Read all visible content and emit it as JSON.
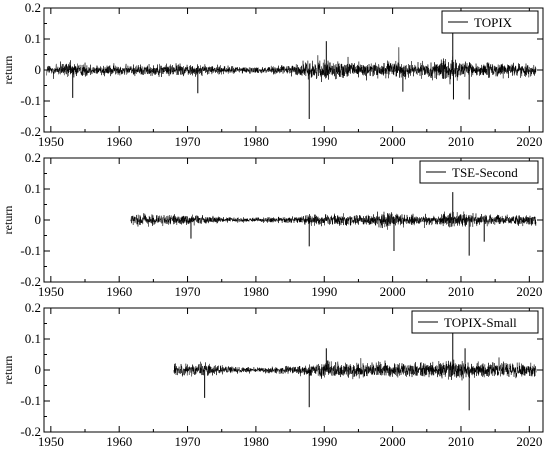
{
  "chart_data": [
    {
      "type": "line",
      "ylabel": "return",
      "xlim": [
        1949,
        2022
      ],
      "ylim": [
        -0.2,
        0.2
      ],
      "xticks": [
        "1950",
        "1960",
        "1970",
        "1980",
        "1990",
        "2000",
        "2010",
        "2020"
      ],
      "yticks": [
        "0.2",
        "0.1",
        "0",
        "-0.1",
        "-0.2"
      ],
      "legend_position": "top-right",
      "series": [
        {
          "name": "TOPIX",
          "start_year": 1949.4,
          "end_year": 2021.0,
          "color": "#000000",
          "volatility": [
            [
              1949.4,
              0.012
            ],
            [
              1953,
              0.016
            ],
            [
              1956,
              0.011
            ],
            [
              1960,
              0.01
            ],
            [
              1965,
              0.011
            ],
            [
              1970,
              0.012
            ],
            [
              1975,
              0.008
            ],
            [
              1980,
              0.006
            ],
            [
              1985,
              0.009
            ],
            [
              1987.5,
              0.016
            ],
            [
              1990,
              0.018
            ],
            [
              1993,
              0.014
            ],
            [
              1998,
              0.015
            ],
            [
              2001,
              0.016
            ],
            [
              2005,
              0.012
            ],
            [
              2008.5,
              0.024
            ],
            [
              2010,
              0.015
            ],
            [
              2013,
              0.014
            ],
            [
              2016,
              0.013
            ],
            [
              2020,
              0.012
            ],
            [
              2021.0,
              0.011
            ]
          ],
          "spikes": [
            [
              1953.2,
              -0.09
            ],
            [
              1987.8,
              -0.158
            ],
            [
              1990.3,
              0.093
            ],
            [
              2008.8,
              0.128
            ],
            [
              2008.9,
              -0.095
            ],
            [
              2011.2,
              -0.095
            ],
            [
              2001.5,
              -0.07
            ],
            [
              1971.5,
              -0.075
            ]
          ]
        },
        {
          "name": "TSE-Second",
          "start_year": 1961.7,
          "end_year": 2021.0,
          "color": "#000000",
          "volatility": [
            [
              1961.7,
              0.012
            ],
            [
              1964,
              0.01
            ],
            [
              1970,
              0.009
            ],
            [
              1975,
              0.006
            ],
            [
              1980,
              0.004
            ],
            [
              1985,
              0.006
            ],
            [
              1988,
              0.01
            ],
            [
              1990,
              0.012
            ],
            [
              1995,
              0.009
            ],
            [
              2000,
              0.016
            ],
            [
              2002,
              0.01
            ],
            [
              2006,
              0.009
            ],
            [
              2008.5,
              0.018
            ],
            [
              2011,
              0.012
            ],
            [
              2015,
              0.01
            ],
            [
              2021.0,
              0.009
            ]
          ],
          "spikes": [
            [
              1987.8,
              -0.085
            ],
            [
              2000.2,
              -0.1
            ],
            [
              2008.8,
              0.09
            ],
            [
              2011.2,
              -0.115
            ],
            [
              2013.4,
              -0.07
            ],
            [
              1970.5,
              -0.06
            ]
          ]
        },
        {
          "name": "TOPIX-Small",
          "start_year": 1968.0,
          "end_year": 2021.0,
          "color": "#000000",
          "volatility": [
            [
              1968.0,
              0.012
            ],
            [
              1972,
              0.013
            ],
            [
              1975,
              0.008
            ],
            [
              1980,
              0.005
            ],
            [
              1985,
              0.007
            ],
            [
              1988,
              0.011
            ],
            [
              1990,
              0.016
            ],
            [
              1995,
              0.013
            ],
            [
              2000,
              0.015
            ],
            [
              2005,
              0.013
            ],
            [
              2008.5,
              0.02
            ],
            [
              2011,
              0.015
            ],
            [
              2015,
              0.014
            ],
            [
              2021.0,
              0.012
            ]
          ],
          "spikes": [
            [
              1987.8,
              -0.12
            ],
            [
              2008.8,
              0.125
            ],
            [
              2010.6,
              0.07
            ],
            [
              2011.2,
              -0.13
            ],
            [
              1990.3,
              0.07
            ],
            [
              1972.5,
              -0.09
            ]
          ]
        }
      ]
    }
  ]
}
